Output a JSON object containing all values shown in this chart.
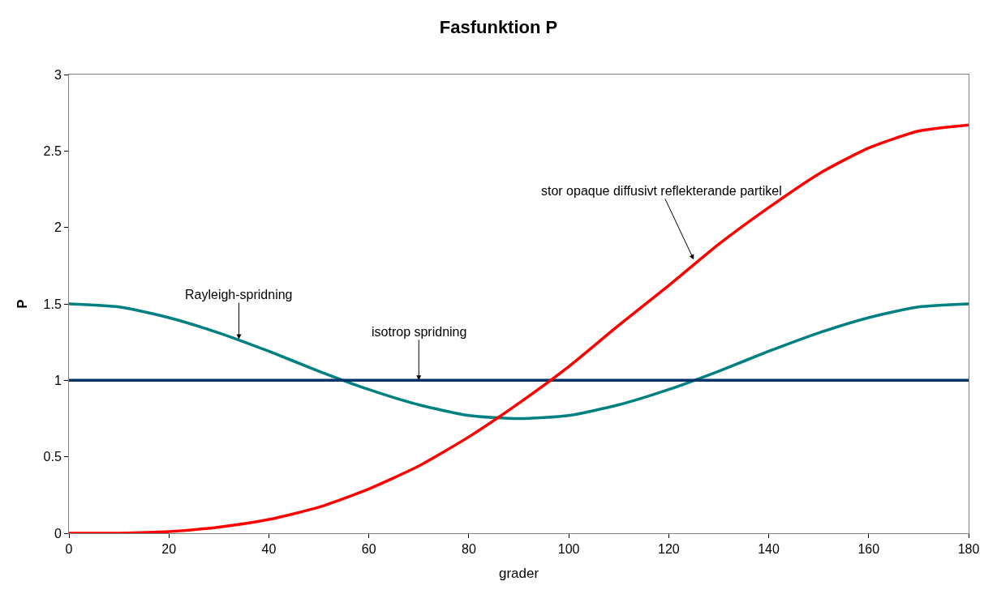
{
  "chart_data": {
    "type": "line",
    "title": "Fasfunktion P",
    "xlabel": "grader",
    "ylabel": "P",
    "x": [
      0,
      10,
      20,
      30,
      40,
      50,
      60,
      70,
      80,
      90,
      100,
      110,
      120,
      130,
      140,
      150,
      160,
      170,
      180
    ],
    "series": [
      {
        "color": "#008080",
        "values": [
          1.5,
          1.48,
          1.41,
          1.31,
          1.19,
          1.06,
          0.94,
          0.84,
          0.77,
          0.75,
          0.77,
          0.84,
          0.94,
          1.06,
          1.19,
          1.31,
          1.41,
          1.48,
          1.5
        ]
      },
      {
        "color": "#003366",
        "values": [
          1,
          1,
          1,
          1,
          1,
          1,
          1,
          1,
          1,
          1,
          1,
          1,
          1,
          1,
          1,
          1,
          1,
          1,
          1
        ]
      },
      {
        "color": "#ff0000",
        "values": [
          0,
          0,
          0.01,
          0.04,
          0.09,
          0.17,
          0.29,
          0.44,
          0.63,
          0.85,
          1.09,
          1.36,
          1.62,
          1.89,
          2.13,
          2.35,
          2.52,
          2.63,
          2.67
        ]
      }
    ],
    "annotations": [
      {
        "text": "Rayleigh-spridning",
        "x": 34,
        "y": 1.27
      },
      {
        "text": "isotrop spridning",
        "x": 70,
        "y": 1.0
      },
      {
        "text": "stor opaque diffusivt reflekterande partikel",
        "x": 125,
        "y": 1.79
      }
    ],
    "xlim": [
      0,
      180
    ],
    "xticks": [
      0,
      20,
      40,
      60,
      80,
      100,
      120,
      140,
      160,
      180
    ],
    "ylim": [
      0,
      3
    ],
    "yticks": [
      0,
      0.5,
      1,
      1.5,
      2,
      2.5,
      3
    ],
    "marker": "none",
    "line_style": "solid"
  }
}
